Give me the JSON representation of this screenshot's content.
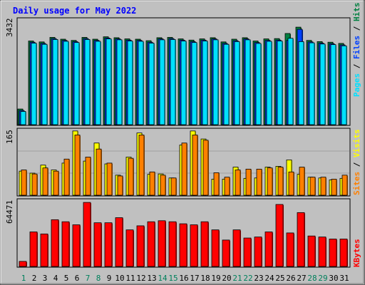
{
  "title": "Daily usage for May 2022",
  "colors": {
    "background": "#c0c0c0",
    "title": "#0000ff",
    "hits": "#008040",
    "files": "#0040ff",
    "pages": "#00e0ff",
    "visits": "#ffff00",
    "sites": "#ff8000",
    "kbytes": "#ff0000",
    "weekday_label": "#000000",
    "weekend_label": "#00805c",
    "grid": "#a0a0a0"
  },
  "chart_data": [
    {
      "type": "bar",
      "panel": "hits-files-pages",
      "y_max_label": "3432",
      "ylim": [
        0,
        3432
      ],
      "right_labels": [
        "Pages",
        "Files",
        "Hits"
      ],
      "categories": [
        "1",
        "2",
        "3",
        "4",
        "5",
        "6",
        "7",
        "8",
        "9",
        "10",
        "11",
        "12",
        "13",
        "14",
        "15",
        "16",
        "17",
        "18",
        "19",
        "20",
        "21",
        "22",
        "23",
        "24",
        "25",
        "26",
        "27",
        "28",
        "29",
        "30",
        "31"
      ],
      "weekend_days": [
        "1",
        "7",
        "8",
        "14",
        "15",
        "21",
        "22",
        "28",
        "29"
      ],
      "series": [
        {
          "name": "Hits",
          "values": [
            520,
            2780,
            2750,
            2900,
            2840,
            2800,
            2900,
            2840,
            2920,
            2890,
            2850,
            2840,
            2790,
            2890,
            2900,
            2850,
            2810,
            2850,
            2890,
            2750,
            2840,
            2890,
            2780,
            2850,
            2860,
            3030,
            3240,
            2800,
            2760,
            2740,
            2700
          ]
        },
        {
          "name": "Files",
          "values": [
            470,
            2740,
            2700,
            2860,
            2800,
            2760,
            2860,
            2800,
            2880,
            2850,
            2810,
            2800,
            2740,
            2850,
            2860,
            2810,
            2760,
            2810,
            2850,
            2700,
            2790,
            2850,
            2730,
            2800,
            2810,
            2800,
            3170,
            2750,
            2710,
            2690,
            2650
          ]
        },
        {
          "name": "Pages",
          "values": [
            440,
            2710,
            2670,
            2830,
            2770,
            2730,
            2830,
            2770,
            2850,
            2820,
            2780,
            2770,
            2710,
            2820,
            2830,
            2780,
            2730,
            2780,
            2820,
            2670,
            2760,
            2820,
            2700,
            2770,
            2780,
            2870,
            2760,
            2720,
            2680,
            2660,
            2620
          ]
        }
      ]
    },
    {
      "type": "bar",
      "panel": "visits-sites",
      "y_max_label": "165",
      "ylim": [
        0,
        165
      ],
      "right_labels": [
        "Sites",
        "Visits"
      ],
      "categories": [
        "1",
        "2",
        "3",
        "4",
        "5",
        "6",
        "7",
        "8",
        "9",
        "10",
        "11",
        "12",
        "13",
        "14",
        "15",
        "16",
        "17",
        "18",
        "19",
        "20",
        "21",
        "22",
        "23",
        "24",
        "25",
        "26",
        "27",
        "28",
        "29",
        "30",
        "31"
      ],
      "series": [
        {
          "name": "Visits",
          "values": [
            60,
            55,
            75,
            63,
            80,
            160,
            85,
            130,
            78,
            50,
            95,
            155,
            52,
            53,
            43,
            125,
            160,
            140,
            40,
            40,
            70,
            42,
            43,
            70,
            72,
            88,
            52,
            45,
            43,
            38,
            42
          ]
        },
        {
          "name": "Sites",
          "values": [
            63,
            53,
            68,
            60,
            90,
            150,
            95,
            115,
            80,
            48,
            92,
            150,
            58,
            50,
            43,
            130,
            150,
            137,
            56,
            45,
            63,
            65,
            65,
            68,
            70,
            58,
            70,
            45,
            45,
            40,
            50
          ]
        }
      ]
    },
    {
      "type": "bar",
      "panel": "kbytes",
      "y_max_label": "64471",
      "ylim": [
        0,
        64471
      ],
      "right_labels": [
        "KBytes"
      ],
      "categories": [
        "1",
        "2",
        "3",
        "4",
        "5",
        "6",
        "7",
        "8",
        "9",
        "10",
        "11",
        "12",
        "13",
        "14",
        "15",
        "16",
        "17",
        "18",
        "19",
        "20",
        "21",
        "22",
        "23",
        "24",
        "25",
        "26",
        "27",
        "28",
        "29",
        "30",
        "31"
      ],
      "series": [
        {
          "name": "KBytes",
          "values": [
            5000,
            34000,
            32000,
            46000,
            44000,
            41000,
            63000,
            43000,
            43000,
            48000,
            36000,
            40000,
            44000,
            45000,
            44000,
            42000,
            41000,
            44000,
            36000,
            26000,
            36000,
            28000,
            29000,
            34000,
            61000,
            33000,
            53000,
            30000,
            29000,
            27000,
            27000
          ]
        }
      ]
    }
  ]
}
